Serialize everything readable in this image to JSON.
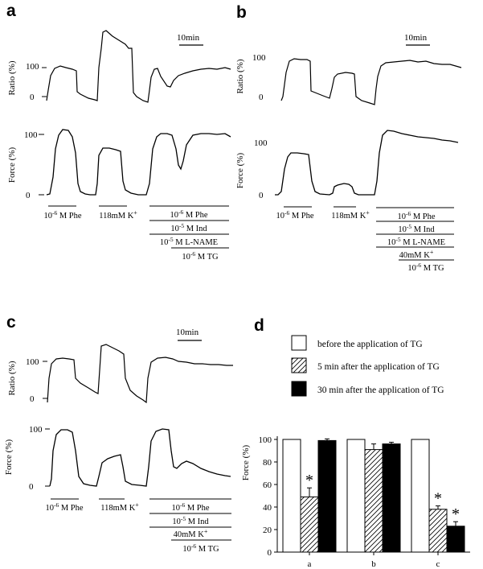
{
  "panels": {
    "a": {
      "letter": "a",
      "ratio_label": "Ratio (%)",
      "force_label": "Force (%)",
      "ratio_ticks": [
        "100",
        "0"
      ],
      "force_ticks": [
        "100",
        "0"
      ],
      "scale_bar": "10min",
      "treatments": {
        "phe": "10-6 M Phe",
        "k": "118mM K+",
        "group": [
          "10-6 M Phe",
          "10-5 M Ind",
          "10-5 M L-NAME",
          "10-6 M TG"
        ]
      }
    },
    "b": {
      "letter": "b",
      "ratio_label": "Ratio (%)",
      "force_label": "Force (%)",
      "ratio_ticks": [
        "100",
        "0"
      ],
      "force_ticks": [
        "100",
        "0"
      ],
      "scale_bar": "10min",
      "treatments": {
        "phe": "10-6 M Phe",
        "k": "118mM K+",
        "group": [
          "10-6 M Phe",
          "10-5 M Ind",
          "10-5 M L-NAME",
          "40mM K+",
          "10-6 M TG"
        ]
      }
    },
    "c": {
      "letter": "c",
      "ratio_label": "Ratio (%)",
      "force_label": "Force (%)",
      "ratio_ticks": [
        "100",
        "0"
      ],
      "force_ticks": [
        "100",
        "0"
      ],
      "scale_bar": "10min",
      "treatments": {
        "phe": "10-6 M Phe",
        "k": "118mM K+",
        "group": [
          "10-6 M Phe",
          "10-5 M Ind",
          "40mM K+",
          "10-6 M TG"
        ]
      }
    },
    "d": {
      "letter": "d"
    }
  },
  "chart_data": {
    "type": "bar",
    "categories": [
      "a",
      "b",
      "c"
    ],
    "series": [
      {
        "name": "before the application of TG",
        "values": [
          100,
          100,
          100
        ],
        "errors": [
          0,
          0,
          0
        ],
        "fill": "#ffffff"
      },
      {
        "name": "5 min after the application of TG",
        "values": [
          49,
          91,
          38
        ],
        "errors": [
          8,
          5,
          3
        ],
        "fill": "hatch"
      },
      {
        "name": "30 min after the application of TG",
        "values": [
          99,
          96,
          23
        ],
        "errors": [
          1.5,
          1.5,
          4
        ],
        "fill": "#000000"
      }
    ],
    "significance": [
      {
        "category": "a",
        "series": 1,
        "label": "*"
      },
      {
        "category": "c",
        "series": 1,
        "label": "*"
      },
      {
        "category": "c",
        "series": 2,
        "label": "*"
      }
    ],
    "ylabel": "Force (%)",
    "ylim": [
      0,
      100
    ],
    "yticks": [
      0,
      20,
      40,
      60,
      80,
      100
    ],
    "legend_position": "top"
  }
}
